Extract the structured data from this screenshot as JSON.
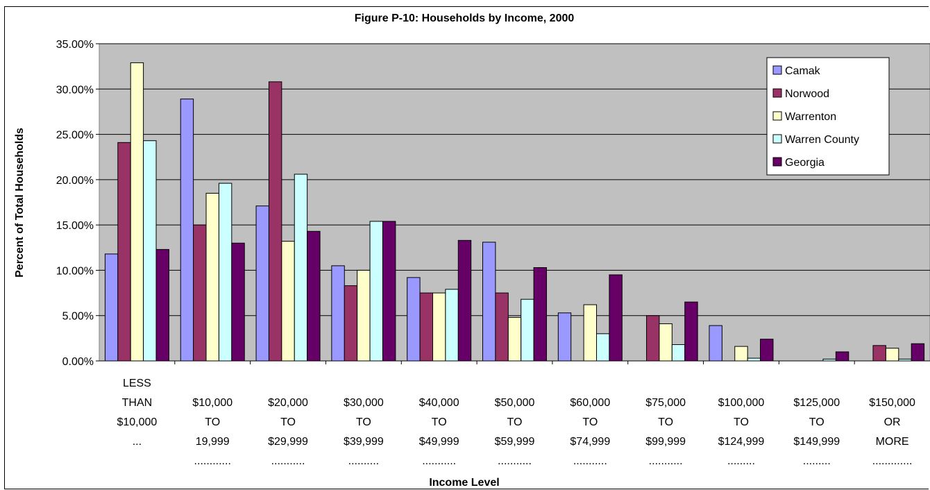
{
  "chart_data": {
    "type": "bar",
    "title": "Figure P-10: Households by Income, 2000",
    "xlabel": "Income Level",
    "ylabel": "Percent of Total Households",
    "ylim": [
      0,
      0.35
    ],
    "yticks": [
      "0.00%",
      "5.00%",
      "10.00%",
      "15.00%",
      "20.00%",
      "25.00%",
      "30.00%",
      "35.00%"
    ],
    "grid": true,
    "legend_position": "top-right",
    "categories": [
      [
        "LESS",
        "THAN",
        "$10,000",
        "..."
      ],
      [
        "$10,000",
        "TO",
        "19,999",
        "............"
      ],
      [
        "$20,000",
        "TO",
        "$29,999",
        "..........."
      ],
      [
        "$30,000",
        "TO",
        "$39,999",
        ".........."
      ],
      [
        "$40,000",
        "TO",
        "$49,999",
        "..........."
      ],
      [
        "$50,000",
        "TO",
        "$59,999",
        "..........."
      ],
      [
        "$60,000",
        "TO",
        "$74,999",
        "..........."
      ],
      [
        "$75,000",
        "TO",
        "$99,999",
        "..........."
      ],
      [
        "$100,000",
        "TO",
        "$124,999",
        "........."
      ],
      [
        "$125,000",
        "TO",
        "$149,999",
        "........."
      ],
      [
        "$150,000",
        "OR",
        "MORE",
        "............."
      ]
    ],
    "series": [
      {
        "name": "Camak",
        "color": "#9999ff",
        "values": [
          0.118,
          0.289,
          0.171,
          0.105,
          0.092,
          0.131,
          0.053,
          0.0,
          0.039,
          0.0,
          0.0
        ]
      },
      {
        "name": "Norwood",
        "color": "#993366",
        "values": [
          0.241,
          0.15,
          0.308,
          0.083,
          0.075,
          0.075,
          0.0,
          0.05,
          0.0,
          0.0,
          0.017
        ]
      },
      {
        "name": "Warrenton",
        "color": "#ffffcc",
        "values": [
          0.329,
          0.185,
          0.132,
          0.1,
          0.075,
          0.048,
          0.062,
          0.041,
          0.016,
          0.0,
          0.014
        ]
      },
      {
        "name": "Warren County",
        "color": "#ccffff",
        "values": [
          0.243,
          0.196,
          0.206,
          0.154,
          0.079,
          0.068,
          0.03,
          0.018,
          0.003,
          0.002,
          0.002
        ]
      },
      {
        "name": "Georgia",
        "color": "#660066",
        "values": [
          0.123,
          0.13,
          0.143,
          0.154,
          0.133,
          0.103,
          0.095,
          0.065,
          0.024,
          0.01,
          0.019
        ]
      }
    ]
  }
}
